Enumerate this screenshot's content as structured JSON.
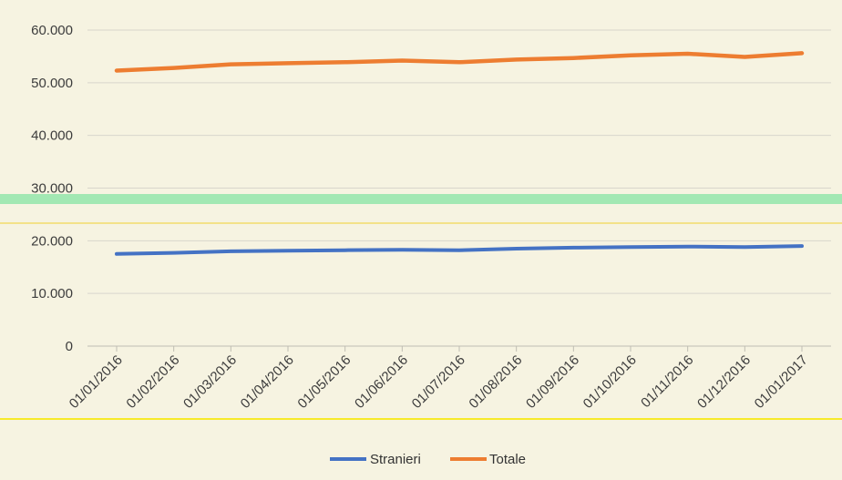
{
  "chart_data": {
    "type": "line",
    "x": [
      "01/01/2016",
      "01/02/2016",
      "01/03/2016",
      "01/04/2016",
      "01/05/2016",
      "01/06/2016",
      "01/07/2016",
      "01/08/2016",
      "01/09/2016",
      "01/10/2016",
      "01/11/2016",
      "01/12/2016",
      "01/01/2017"
    ],
    "series": [
      {
        "name": "Stranieri",
        "color": "#4472c4",
        "values": [
          17500,
          17700,
          18000,
          18100,
          18200,
          18300,
          18200,
          18500,
          18700,
          18800,
          18900,
          18800,
          19000
        ]
      },
      {
        "name": "Totale",
        "color": "#ed7d31",
        "values": [
          52300,
          52800,
          53500,
          53700,
          53900,
          54200,
          53900,
          54400,
          54700,
          55200,
          55500,
          54900,
          55600
        ]
      }
    ],
    "yticks": [
      "0",
      "10.000",
      "20.000",
      "30.000",
      "40.000",
      "50.000",
      "60.000"
    ],
    "ylim": [
      0,
      60000
    ],
    "grid": true,
    "legend": "bottom-center",
    "title": "",
    "xlabel": "",
    "ylabel": ""
  }
}
